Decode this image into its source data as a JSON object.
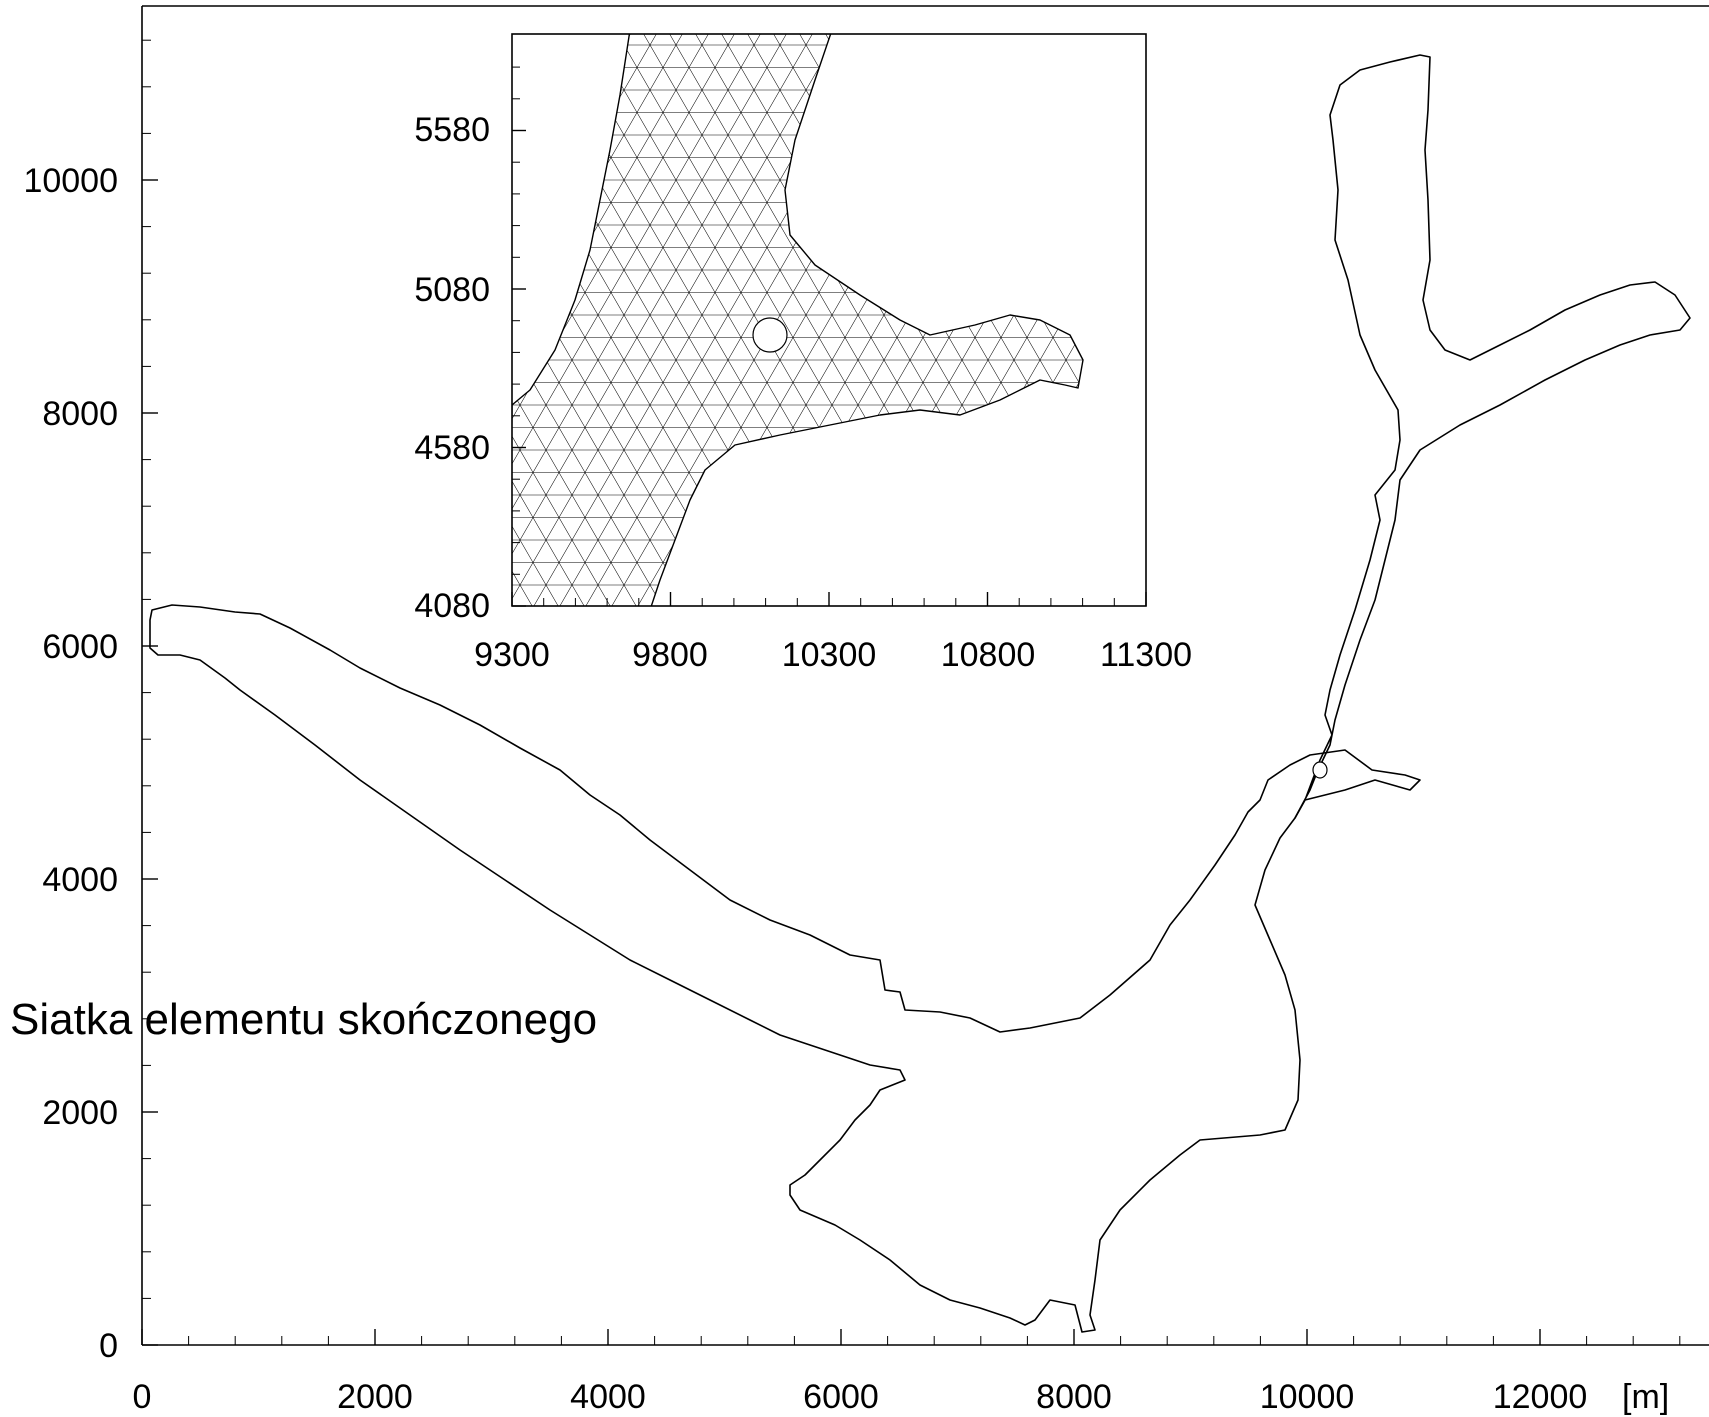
{
  "caption": "Siatka elementu skończonego",
  "main_plot": {
    "x_ticks": [
      "0",
      "2000",
      "4000",
      "6000",
      "8000",
      "10000",
      "12000"
    ],
    "y_ticks": [
      "0",
      "2000",
      "4000",
      "6000",
      "8000",
      "10000"
    ],
    "x_unit": "[m]"
  },
  "inset_plot": {
    "x_ticks": [
      "9300",
      "9800",
      "10300",
      "10800",
      "11300"
    ],
    "y_ticks": [
      "4080",
      "4580",
      "5080",
      "5580"
    ]
  },
  "colors": {
    "line": "#000000",
    "background": "#ffffff"
  }
}
